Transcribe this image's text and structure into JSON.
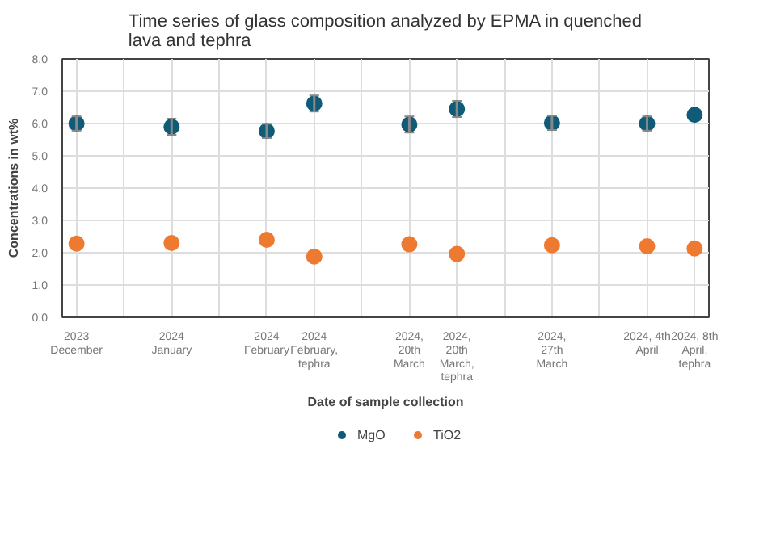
{
  "chart_data": {
    "type": "scatter",
    "title": "Time series of glass composition analyzed by EPMA in quenched lava and tephra",
    "xlabel": "Date of sample collection",
    "ylabel": "Concentrations in wt%",
    "categories": [
      "2023\nDecember",
      null,
      "2024\nJanuary",
      null,
      "2024\nFebruary",
      "2024\nFebruary,\ntephra",
      null,
      "2024,\n20th\nMarch",
      "2024,\n20th\nMarch,\ntephra",
      null,
      "2024,\n27th\nMarch",
      null,
      "2024, 4th\nApril",
      "2024, 8th\nApril,\ntephra"
    ],
    "series": [
      {
        "name": "MgO",
        "color": "#0f5b78",
        "values": [
          6.0,
          null,
          5.9,
          null,
          5.77,
          6.62,
          null,
          5.97,
          6.45,
          null,
          6.02,
          null,
          6.0,
          6.27
        ],
        "errors": [
          0.22,
          null,
          0.25,
          null,
          0.22,
          0.25,
          null,
          0.25,
          0.25,
          null,
          0.22,
          null,
          0.22,
          null
        ]
      },
      {
        "name": "TiO2",
        "color": "#ee7a32",
        "values": [
          2.28,
          null,
          2.3,
          null,
          2.4,
          1.88,
          null,
          2.26,
          1.96,
          null,
          2.23,
          null,
          2.2,
          2.13
        ]
      }
    ],
    "ylim": [
      0,
      8
    ],
    "yticks": [
      {
        "value": 0,
        "label": "0.0"
      },
      {
        "value": 1,
        "label": "1.0"
      },
      {
        "value": 2,
        "label": "2.0"
      },
      {
        "value": 3,
        "label": "3.0"
      },
      {
        "value": 4,
        "label": "4.0"
      },
      {
        "value": 5,
        "label": "5.0"
      },
      {
        "value": 6,
        "label": "6.0"
      },
      {
        "value": 7,
        "label": "7.0"
      },
      {
        "value": 8,
        "label": "8.0"
      }
    ],
    "grid": true,
    "legend": "bottom",
    "marker": "circle"
  }
}
